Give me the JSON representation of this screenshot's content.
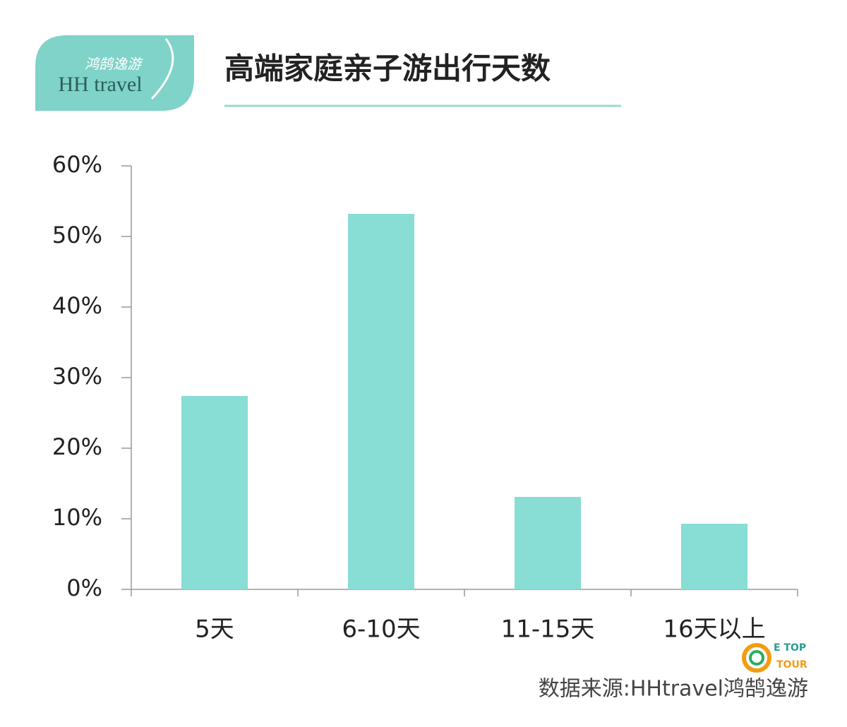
{
  "logo": {
    "cn": "鸿鹄逸游",
    "en": "HH travel"
  },
  "badge": {
    "line1": "E TOP",
    "line2": "TOUR"
  },
  "source": "数据来源:HHtravel鸿鹄逸游",
  "chart_data": {
    "type": "bar",
    "title": "高端家庭亲子游出行天数",
    "categories": [
      "5天",
      "6-10天",
      "11-15天",
      "16天以上"
    ],
    "values": [
      27.4,
      53.2,
      13.1,
      9.3
    ],
    "color": "#88ddd4",
    "ylim": [
      0,
      60
    ],
    "yticks": [
      {
        "value": 0,
        "label": "0%"
      },
      {
        "value": 10,
        "label": "10%"
      },
      {
        "value": 20,
        "label": "20%"
      },
      {
        "value": 30,
        "label": "30%"
      },
      {
        "value": 40,
        "label": "40%"
      },
      {
        "value": 50,
        "label": "50%"
      },
      {
        "value": 60,
        "label": "60%"
      }
    ],
    "grid": false
  }
}
